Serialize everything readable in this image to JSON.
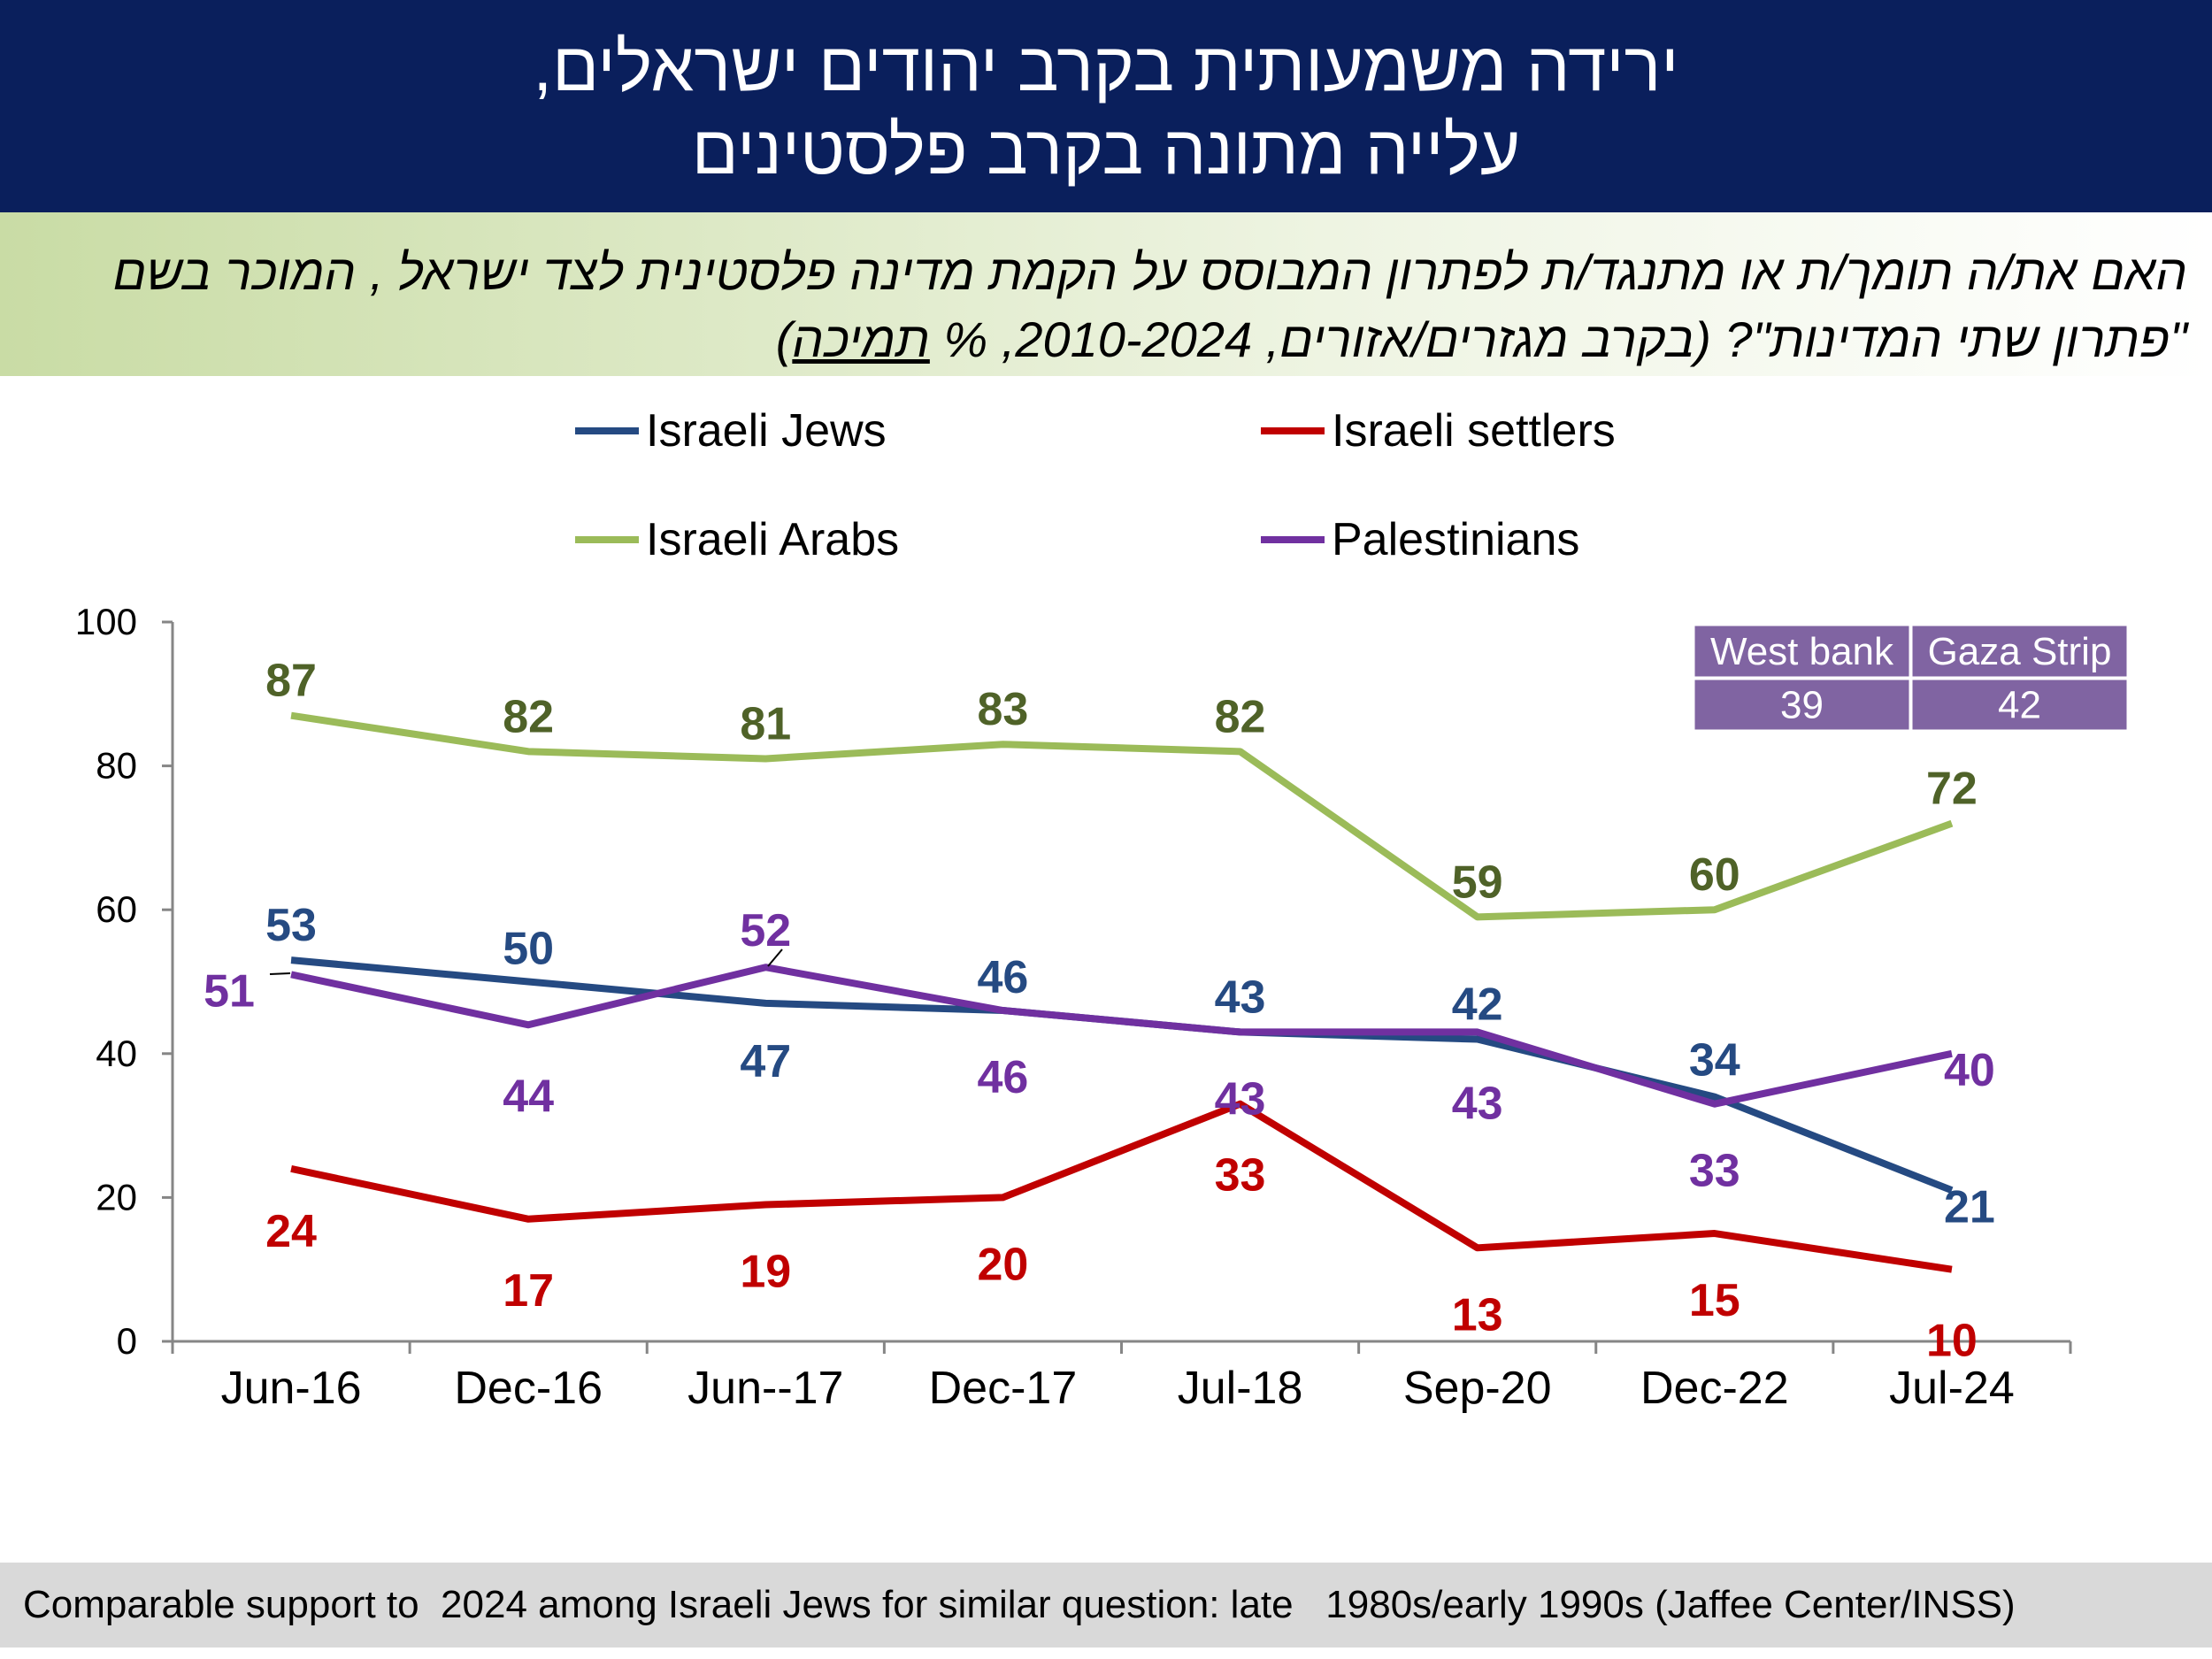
{
  "title": {
    "line1": "ירידה משמעותית בקרב יהודים ישראלים,",
    "line2": "עלייה מתונה בקרב פלסטינים"
  },
  "question": {
    "line1": "האם את/ה תומך/ת או מתנגד/ת לפתרון המבוסס על הקמת מדינה פלסטינית לצד ישראל , המוכר בשם",
    "line2_a": "\"פתרון שתי המדינות\"?  (בקרב מגזרים/אזורים, 2010-2024, % ",
    "line2_u": "תמיכה",
    "line2_b": ")"
  },
  "colors": {
    "israeli_jews": "#254a82",
    "israeli_settlers": "#c00000",
    "israeli_arabs": "#9bbb59",
    "palestinians": "#7030a0",
    "arabs_label": "#4f6228",
    "title_bg": "#0a1f5c",
    "table_bg": "#8064a2"
  },
  "chart_data": {
    "type": "line",
    "categories": [
      "Jun-16",
      "Dec-16",
      "Jun--17",
      "Dec-17",
      "Jul-18",
      "Sep-20",
      "Dec-22",
      "Jul-24"
    ],
    "ylim": [
      0,
      100
    ],
    "yticks": [
      0,
      20,
      40,
      60,
      80,
      100
    ],
    "grid": false,
    "legend_position": "top",
    "series": [
      {
        "name": "Israeli Jews",
        "color": "#254a82",
        "values": [
          53,
          50,
          47,
          46,
          43,
          42,
          34,
          21
        ]
      },
      {
        "name": "Israeli settlers",
        "color": "#c00000",
        "values": [
          24,
          17,
          19,
          20,
          33,
          13,
          15,
          10
        ]
      },
      {
        "name": "Israeli Arabs",
        "color": "#9bbb59",
        "values": [
          87,
          82,
          81,
          83,
          82,
          59,
          60,
          72
        ]
      },
      {
        "name": "Palestinians",
        "color": "#7030a0",
        "values": [
          51,
          44,
          52,
          46,
          43,
          43,
          33,
          40
        ]
      }
    ],
    "inset_table": {
      "headers": [
        "West bank",
        "Gaza Strip"
      ],
      "values": [
        "39",
        "42"
      ]
    }
  },
  "footer": "Comparable support to  2024 among Israeli Jews for similar question: late   1980s/early 1990s (Jaffee Center/INSS)"
}
